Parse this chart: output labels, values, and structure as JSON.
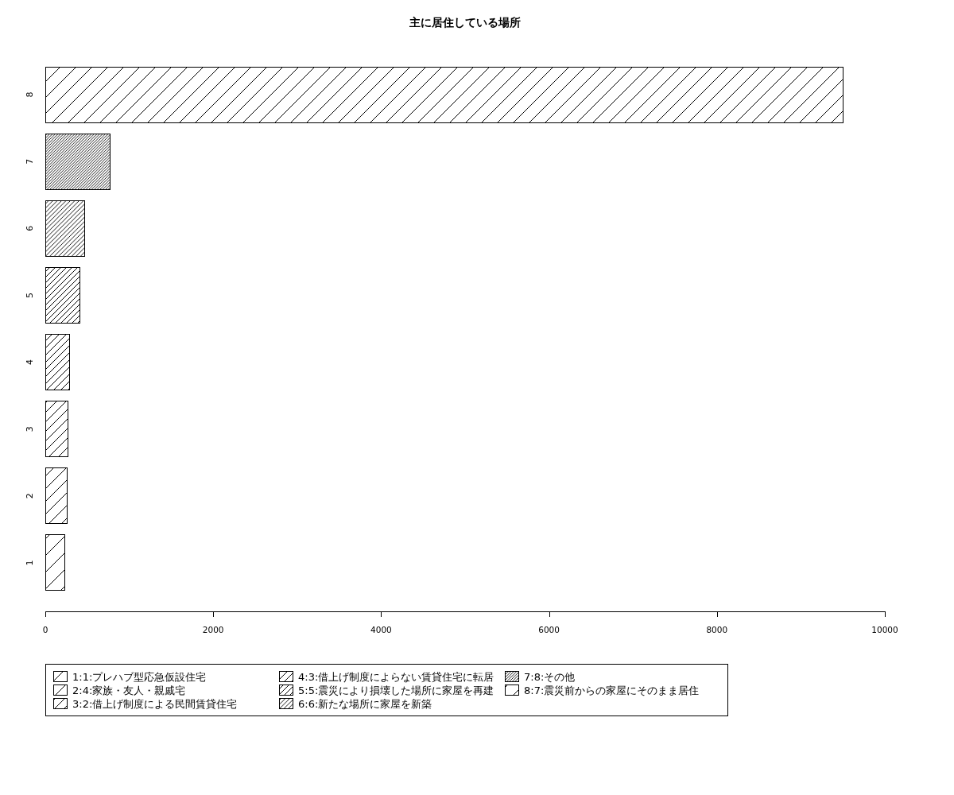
{
  "chart_data": {
    "type": "bar",
    "title": "主に居住している場所",
    "orientation": "horizontal",
    "stacked": true,
    "categories": [
      "8",
      "7",
      "6",
      "5",
      "4",
      "3",
      "2",
      "1"
    ],
    "series": [
      {
        "name": "1:1:プレハブ型応急仮設住宅",
        "color": "#000000",
        "values": [
          null,
          null,
          null,
          null,
          null,
          null,
          null,
          230
        ]
      },
      {
        "name": "2:4:家族・友人・親戚宅",
        "color": "#000000",
        "values": [
          null,
          null,
          null,
          null,
          null,
          null,
          260,
          null
        ]
      },
      {
        "name": "3:2:借上げ制度による民間賃貸住宅",
        "color": "#000000",
        "values": [
          null,
          null,
          null,
          null,
          null,
          270,
          null,
          null
        ]
      },
      {
        "name": "4:3:借上げ制度によらない賃貸住宅に転居",
        "color": "#000000",
        "values": [
          null,
          null,
          null,
          null,
          290,
          null,
          null,
          null
        ]
      },
      {
        "name": "5:5:震災により損壊した場所に家屋を再建",
        "color": "#000000",
        "values": [
          null,
          null,
          null,
          410,
          null,
          null,
          null,
          null
        ]
      },
      {
        "name": "6:6:新たな場所に家屋を新築",
        "color": "#000000",
        "values": [
          null,
          null,
          470,
          null,
          null,
          null,
          null,
          null
        ]
      },
      {
        "name": "7:8:その他",
        "color": "#000000",
        "values": [
          null,
          770,
          null,
          null,
          null,
          null,
          null,
          null
        ]
      },
      {
        "name": "8:7:震災前からの家屋にそのまま居住",
        "color": "#000000",
        "values": [
          9500,
          null,
          null,
          null,
          null,
          null,
          null,
          null
        ]
      }
    ],
    "xlim": [
      0,
      10000
    ],
    "xticks": [
      0,
      2000,
      4000,
      6000,
      8000,
      10000
    ],
    "legend": "bottom"
  }
}
